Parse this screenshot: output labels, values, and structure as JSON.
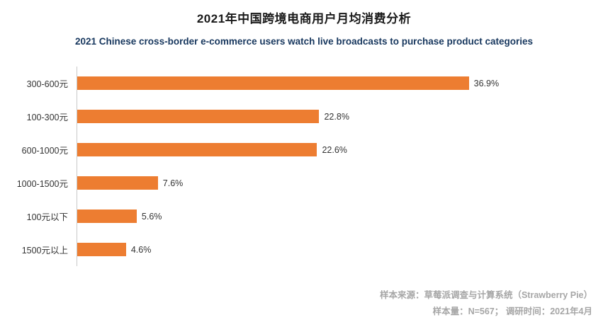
{
  "header": {
    "title": "2021年中国跨境电商用户月均消费分析",
    "subtitle": "2021 Chinese cross-border e-commerce users watch live broadcasts to purchase product categories"
  },
  "footer": {
    "source": "样本来源：草莓派调查与计算系统（Strawberry Pie）",
    "sample": "样本量：N=567；  调研时间：2021年4月"
  },
  "colors": {
    "bar": "#ED7D31",
    "axis_line": "#c9c9c9",
    "subtitle_text": "#17375E",
    "footer_text": "#a6a6a6"
  },
  "chart_data": {
    "type": "bar",
    "orientation": "horizontal",
    "title": "2021年中国跨境电商用户月均消费分析",
    "subtitle": "2021 Chinese cross-border e-commerce users watch live broadcasts to purchase product categories",
    "categories": [
      "300-600元",
      "100-300元",
      "600-1000元",
      "1000-1500元",
      "100元以下",
      "1500元以上"
    ],
    "values": [
      36.9,
      22.8,
      22.6,
      7.6,
      5.6,
      4.6
    ],
    "value_labels": [
      "36.9%",
      "22.8%",
      "22.6%",
      "7.6%",
      "5.6%",
      "4.6%"
    ],
    "xlabel": "",
    "ylabel": "",
    "xlim": [
      0,
      44
    ],
    "grid": false,
    "legend": false,
    "data_labels": "outside-end"
  }
}
